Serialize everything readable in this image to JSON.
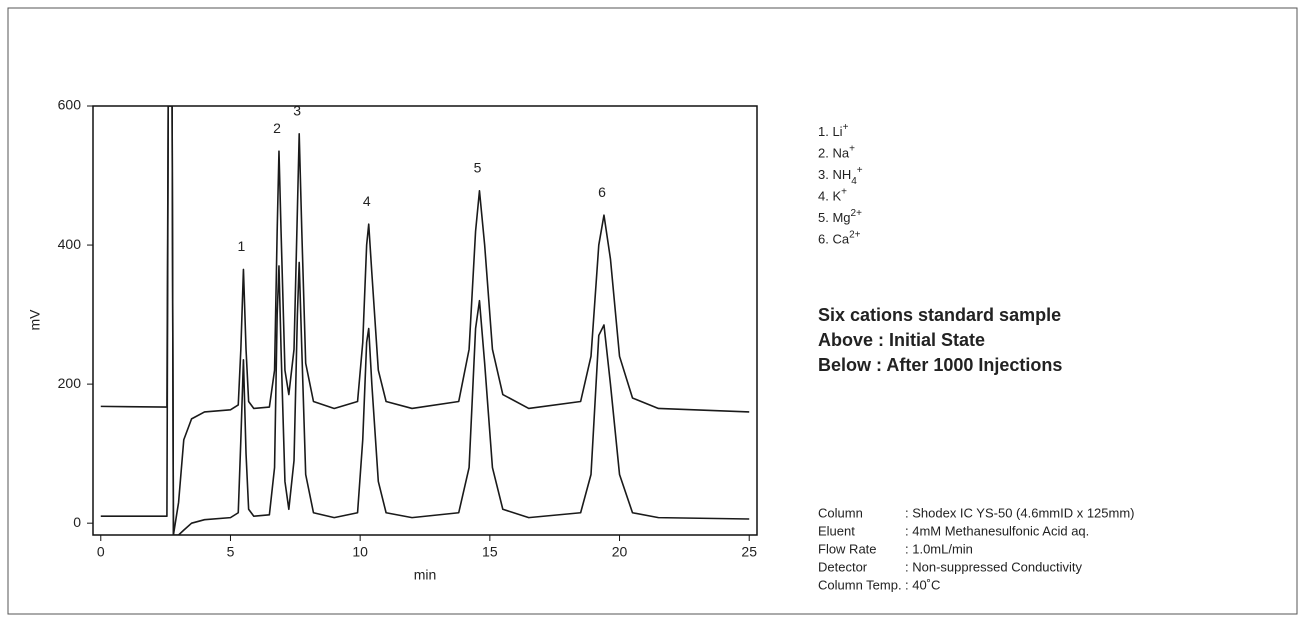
{
  "chart_data": {
    "type": "line",
    "xlabel": "min",
    "ylabel": "mV",
    "xlim": [
      -0.3,
      25.3
    ],
    "ylim": [
      -17,
      600
    ],
    "xticks": [
      0,
      5,
      10,
      15,
      20,
      25
    ],
    "yticks": [
      0,
      200,
      400,
      600
    ],
    "x": [
      0,
      2.55,
      2.6,
      2.75,
      2.8,
      3.0,
      3.2,
      3.5,
      4,
      5,
      5.3,
      5.4,
      5.5,
      5.6,
      5.7,
      5.9,
      6.5,
      6.7,
      6.8,
      6.87,
      6.95,
      7.1,
      7.25,
      7.45,
      7.58,
      7.65,
      7.75,
      7.9,
      8.2,
      9,
      9.9,
      10.1,
      10.25,
      10.33,
      10.45,
      10.7,
      11,
      12,
      13.8,
      14.2,
      14.45,
      14.6,
      14.8,
      15.1,
      15.5,
      16.5,
      18.5,
      18.9,
      19.2,
      19.4,
      19.65,
      20,
      20.5,
      21.5,
      25
    ],
    "series": [
      {
        "color": "#1a1a1a",
        "values": [
          168,
          167,
          600,
          600,
          -17,
          30,
          120,
          150,
          160,
          163,
          170,
          250,
          365,
          250,
          175,
          165,
          167,
          220,
          420,
          535,
          420,
          220,
          185,
          250,
          450,
          560,
          420,
          230,
          175,
          165,
          175,
          260,
          400,
          430,
          360,
          220,
          175,
          165,
          175,
          250,
          420,
          478,
          400,
          250,
          185,
          165,
          175,
          240,
          400,
          443,
          380,
          240,
          180,
          165,
          160
        ]
      },
      {
        "color": "#1a1a1a",
        "values": [
          10,
          10,
          600,
          600,
          -17,
          -17,
          -10,
          0,
          5,
          8,
          15,
          120,
          235,
          100,
          20,
          10,
          12,
          80,
          300,
          370,
          250,
          60,
          20,
          90,
          300,
          375,
          250,
          70,
          15,
          8,
          15,
          120,
          260,
          280,
          200,
          60,
          15,
          8,
          15,
          80,
          280,
          320,
          230,
          80,
          20,
          8,
          15,
          70,
          270,
          285,
          200,
          70,
          15,
          8,
          6
        ]
      }
    ],
    "peaks": [
      {
        "label": "1",
        "x": 5.5
      },
      {
        "label": "2",
        "x": 6.87
      },
      {
        "label": "3",
        "x": 7.65
      },
      {
        "label": "4",
        "x": 10.33
      },
      {
        "label": "5",
        "x": 14.6
      },
      {
        "label": "6",
        "x": 19.4
      }
    ],
    "ions": [
      {
        "text": "1. Li",
        "sup": "+"
      },
      {
        "text": "2. Na",
        "sup": "+"
      },
      {
        "text": "3. NH",
        "sub": "4",
        "sup": "+"
      },
      {
        "text": "4. K",
        "sup": "+"
      },
      {
        "text": "5. Mg",
        "sup": "2+"
      },
      {
        "text": "6. Ca",
        "sup": "2+"
      }
    ],
    "description": [
      "Six cations standard sample",
      "Above : Initial State",
      "Below : After 1000 Injections"
    ],
    "conditions": [
      {
        "label": "Column",
        "value": ": Shodex IC YS-50 (4.6mmID x 125mm)"
      },
      {
        "label": "Eluent",
        "value": ": 4mM Methanesulfonic Acid aq."
      },
      {
        "label": "Flow Rate",
        "value": ": 1.0mL/min"
      },
      {
        "label": "Detector",
        "value": ": Non-suppressed Conductivity"
      },
      {
        "label": "Column Temp.",
        "value": ": 40˚C"
      }
    ]
  }
}
